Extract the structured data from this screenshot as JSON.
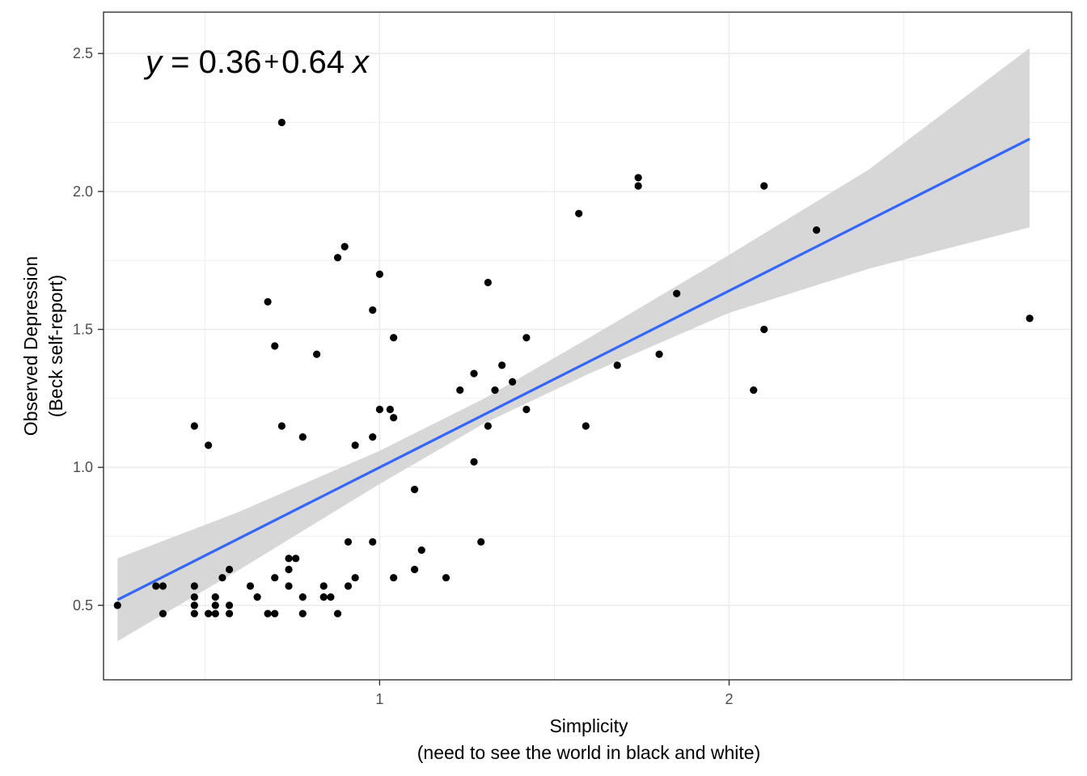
{
  "chart_data": {
    "type": "scatter",
    "xlabel_lines": [
      "Simplicity",
      "(need to see the world in black and white)"
    ],
    "ylabel_lines": [
      "Observed Depression",
      "(Beck self-report)"
    ],
    "xlim": [
      0.21,
      2.98
    ],
    "ylim": [
      0.23,
      2.65
    ],
    "x_ticks": [
      1,
      2
    ],
    "x_tick_labels": [
      "1",
      "2"
    ],
    "x_minor_ticks": [
      0.5,
      1.5,
      2.5
    ],
    "y_ticks": [
      0.5,
      1.0,
      1.5,
      2.0,
      2.5
    ],
    "y_tick_labels": [
      "0.5",
      "1.0",
      "1.5",
      "2.0",
      "2.5"
    ],
    "y_minor_ticks": [
      0.75,
      1.25,
      1.75,
      2.25
    ],
    "grid": true,
    "colors": {
      "points": "#000000",
      "fit_line": "#3366ff",
      "ribbon": "#d3d3d3",
      "grid": "#ebebeb",
      "border": "#333333"
    },
    "annotation": {
      "y": "y",
      "eq": " = 0.36",
      "plus": "+",
      "slope": "0.64",
      "x": "x"
    },
    "fit": {
      "intercept": 0.36,
      "slope": 0.64,
      "x_range": [
        0.25,
        2.86
      ],
      "ci_lower": [
        [
          0.25,
          0.37
        ],
        [
          0.6,
          0.63
        ],
        [
          1.0,
          0.94
        ],
        [
          1.3,
          1.16
        ],
        [
          1.6,
          1.34
        ],
        [
          2.0,
          1.56
        ],
        [
          2.4,
          1.72
        ],
        [
          2.86,
          1.87
        ]
      ],
      "ci_upper": [
        [
          0.25,
          0.67
        ],
        [
          0.6,
          0.84
        ],
        [
          1.0,
          1.06
        ],
        [
          1.3,
          1.25
        ],
        [
          1.6,
          1.47
        ],
        [
          2.0,
          1.77
        ],
        [
          2.4,
          2.08
        ],
        [
          2.86,
          2.52
        ]
      ]
    },
    "points": [
      [
        0.25,
        0.5
      ],
      [
        0.36,
        0.57
      ],
      [
        0.38,
        0.57
      ],
      [
        0.38,
        0.47
      ],
      [
        0.47,
        0.57
      ],
      [
        0.47,
        0.53
      ],
      [
        0.47,
        0.5
      ],
      [
        0.47,
        0.47
      ],
      [
        0.47,
        1.15
      ],
      [
        0.51,
        0.47
      ],
      [
        0.51,
        1.08
      ],
      [
        0.53,
        0.53
      ],
      [
        0.53,
        0.5
      ],
      [
        0.53,
        0.47
      ],
      [
        0.55,
        0.6
      ],
      [
        0.57,
        0.63
      ],
      [
        0.57,
        0.5
      ],
      [
        0.57,
        0.47
      ],
      [
        0.63,
        0.57
      ],
      [
        0.65,
        0.53
      ],
      [
        0.68,
        0.47
      ],
      [
        0.68,
        1.6
      ],
      [
        0.7,
        0.6
      ],
      [
        0.7,
        0.47
      ],
      [
        0.7,
        1.44
      ],
      [
        0.72,
        1.15
      ],
      [
        0.72,
        2.25
      ],
      [
        0.74,
        0.57
      ],
      [
        0.74,
        0.63
      ],
      [
        0.74,
        0.67
      ],
      [
        0.76,
        0.67
      ],
      [
        0.78,
        0.53
      ],
      [
        0.78,
        0.47
      ],
      [
        0.78,
        1.11
      ],
      [
        0.82,
        1.41
      ],
      [
        0.84,
        0.57
      ],
      [
        0.84,
        0.53
      ],
      [
        0.86,
        0.53
      ],
      [
        0.88,
        0.47
      ],
      [
        0.88,
        1.76
      ],
      [
        0.9,
        1.8
      ],
      [
        0.91,
        0.57
      ],
      [
        0.91,
        0.73
      ],
      [
        0.93,
        0.6
      ],
      [
        0.93,
        1.08
      ],
      [
        0.98,
        0.73
      ],
      [
        0.98,
        1.11
      ],
      [
        0.98,
        1.57
      ],
      [
        1.0,
        1.21
      ],
      [
        1.0,
        1.7
      ],
      [
        1.03,
        1.21
      ],
      [
        1.04,
        0.6
      ],
      [
        1.04,
        1.18
      ],
      [
        1.04,
        1.47
      ],
      [
        1.1,
        0.63
      ],
      [
        1.1,
        0.92
      ],
      [
        1.12,
        0.7
      ],
      [
        1.19,
        0.6
      ],
      [
        1.23,
        1.28
      ],
      [
        1.27,
        1.34
      ],
      [
        1.27,
        1.02
      ],
      [
        1.29,
        0.73
      ],
      [
        1.31,
        1.15
      ],
      [
        1.31,
        1.67
      ],
      [
        1.33,
        1.28
      ],
      [
        1.35,
        1.37
      ],
      [
        1.38,
        1.31
      ],
      [
        1.42,
        1.21
      ],
      [
        1.42,
        1.47
      ],
      [
        1.57,
        1.92
      ],
      [
        1.59,
        1.15
      ],
      [
        1.68,
        1.37
      ],
      [
        1.74,
        2.05
      ],
      [
        1.74,
        2.02
      ],
      [
        1.8,
        1.41
      ],
      [
        1.85,
        1.63
      ],
      [
        2.07,
        1.28
      ],
      [
        2.1,
        2.02
      ],
      [
        2.1,
        1.5
      ],
      [
        2.25,
        1.86
      ],
      [
        2.86,
        1.54
      ]
    ]
  }
}
